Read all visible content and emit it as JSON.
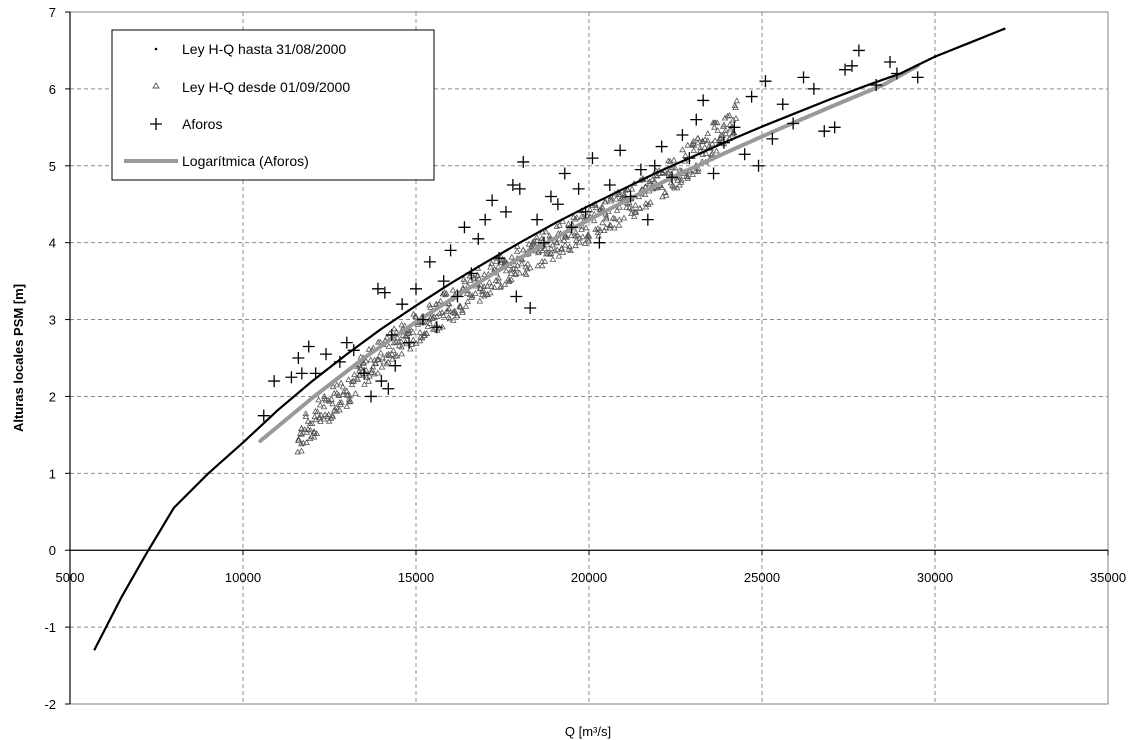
{
  "chart_data": {
    "type": "scatter",
    "title": "",
    "xlabel": "Q [m³/s]",
    "ylabel": "Alturas locales PSM [m]",
    "xlim": [
      5000,
      35000
    ],
    "ylim": [
      -2,
      7
    ],
    "x_ticks": [
      "5000",
      "10000",
      "15000",
      "20000",
      "25000",
      "30000",
      "35000"
    ],
    "y_ticks": [
      "-2",
      "-1",
      "0",
      "1",
      "2",
      "3",
      "4",
      "5",
      "6",
      "7"
    ],
    "grid": true,
    "legend_position": "top-left",
    "legend": [
      {
        "label": "Ley H-Q hasta 31/08/2000",
        "marker": "dot"
      },
      {
        "label": "Ley H-Q desde 01/09/2000",
        "marker": "triangle"
      },
      {
        "label": "Aforos",
        "marker": "plus"
      },
      {
        "label": "Logarítmica (Aforos)",
        "marker": "line"
      }
    ],
    "series": [
      {
        "name": "Ley H-Q hasta 31/08/2000",
        "kind": "dense-curve",
        "color": "#000000",
        "x": [
          5700,
          6500,
          7200,
          8000,
          9000,
          10000,
          11000,
          12000,
          13000,
          14000,
          15000,
          16000,
          17000,
          18000,
          19000,
          20000,
          21000,
          22000,
          23000,
          24000,
          25000,
          26000,
          27000,
          28000,
          29000,
          30000,
          31000,
          32000
        ],
        "y": [
          -1.3,
          -0.6,
          -0.05,
          0.55,
          1.0,
          1.4,
          1.82,
          2.2,
          2.55,
          2.88,
          3.18,
          3.47,
          3.74,
          4.0,
          4.25,
          4.48,
          4.7,
          4.92,
          5.12,
          5.32,
          5.51,
          5.69,
          5.87,
          6.04,
          6.2,
          6.42,
          6.6,
          6.78
        ]
      },
      {
        "name": "Ley H-Q desde 01/09/2000",
        "kind": "band",
        "color": "#555555",
        "x": [
          11600,
          12000,
          12500,
          13000,
          13500,
          14000,
          14500,
          15000,
          15500,
          16000,
          16500,
          17000,
          17500,
          18000,
          18500,
          19000,
          19500,
          20000,
          20500,
          21000,
          21500,
          22000,
          22500,
          23000,
          23500,
          24000,
          24300
        ],
        "y": [
          1.45,
          1.65,
          1.9,
          2.1,
          2.35,
          2.55,
          2.72,
          2.9,
          3.05,
          3.2,
          3.35,
          3.5,
          3.62,
          3.75,
          3.88,
          4.0,
          4.12,
          4.24,
          4.36,
          4.48,
          4.6,
          4.75,
          4.92,
          5.1,
          5.3,
          5.5,
          5.65
        ]
      },
      {
        "name": "Aforos",
        "color": "#000000",
        "x": [
          10600,
          10900,
          11400,
          11600,
          11700,
          11900,
          12100,
          12400,
          12800,
          13000,
          13200,
          13500,
          13700,
          13900,
          14000,
          14100,
          14200,
          14300,
          14400,
          14600,
          14800,
          15000,
          15200,
          15400,
          15600,
          15800,
          16000,
          16200,
          16400,
          16600,
          16800,
          17000,
          17200,
          17400,
          17600,
          17800,
          17900,
          18000,
          18100,
          18300,
          18500,
          18700,
          18900,
          19100,
          19300,
          19500,
          19700,
          19900,
          20100,
          20300,
          20600,
          20900,
          21200,
          21500,
          21700,
          21900,
          22100,
          22400,
          22700,
          22900,
          23100,
          23300,
          23600,
          23900,
          24200,
          24500,
          24700,
          24900,
          25100,
          25300,
          25600,
          25900,
          26200,
          26500,
          26800,
          27100,
          27400,
          27600,
          27800,
          28300,
          28700,
          28900,
          29500
        ],
        "y": [
          1.75,
          2.2,
          2.25,
          2.5,
          2.3,
          2.65,
          2.3,
          2.55,
          2.45,
          2.7,
          2.6,
          2.3,
          2.0,
          3.4,
          2.2,
          3.35,
          2.1,
          2.8,
          2.4,
          3.2,
          2.7,
          3.4,
          3.0,
          3.75,
          2.9,
          3.5,
          3.9,
          3.3,
          4.2,
          3.6,
          4.05,
          4.3,
          4.55,
          3.8,
          4.4,
          4.75,
          3.3,
          4.7,
          5.05,
          3.15,
          4.3,
          4.0,
          4.6,
          4.5,
          4.9,
          4.2,
          4.7,
          4.4,
          5.1,
          4.0,
          4.75,
          5.2,
          4.6,
          4.95,
          4.3,
          5.0,
          5.25,
          4.85,
          5.4,
          5.1,
          5.6,
          5.85,
          4.9,
          5.3,
          5.5,
          5.15,
          5.9,
          5.0,
          6.1,
          5.35,
          5.8,
          5.55,
          6.15,
          6.0,
          5.45,
          5.5,
          6.25,
          6.3,
          6.5,
          6.05,
          6.35,
          6.2,
          6.15
        ]
      },
      {
        "name": "Logarítmica (Aforos)",
        "kind": "trendline",
        "color": "#999999",
        "x": [
          10500,
          12000,
          13500,
          15000,
          16500,
          18000,
          19500,
          21000,
          22500,
          24000,
          25500,
          27000,
          28500,
          29500
        ],
        "y": [
          1.42,
          1.98,
          2.5,
          2.97,
          3.4,
          3.8,
          4.18,
          4.53,
          4.87,
          5.18,
          5.48,
          5.77,
          6.05,
          6.3
        ]
      }
    ]
  }
}
